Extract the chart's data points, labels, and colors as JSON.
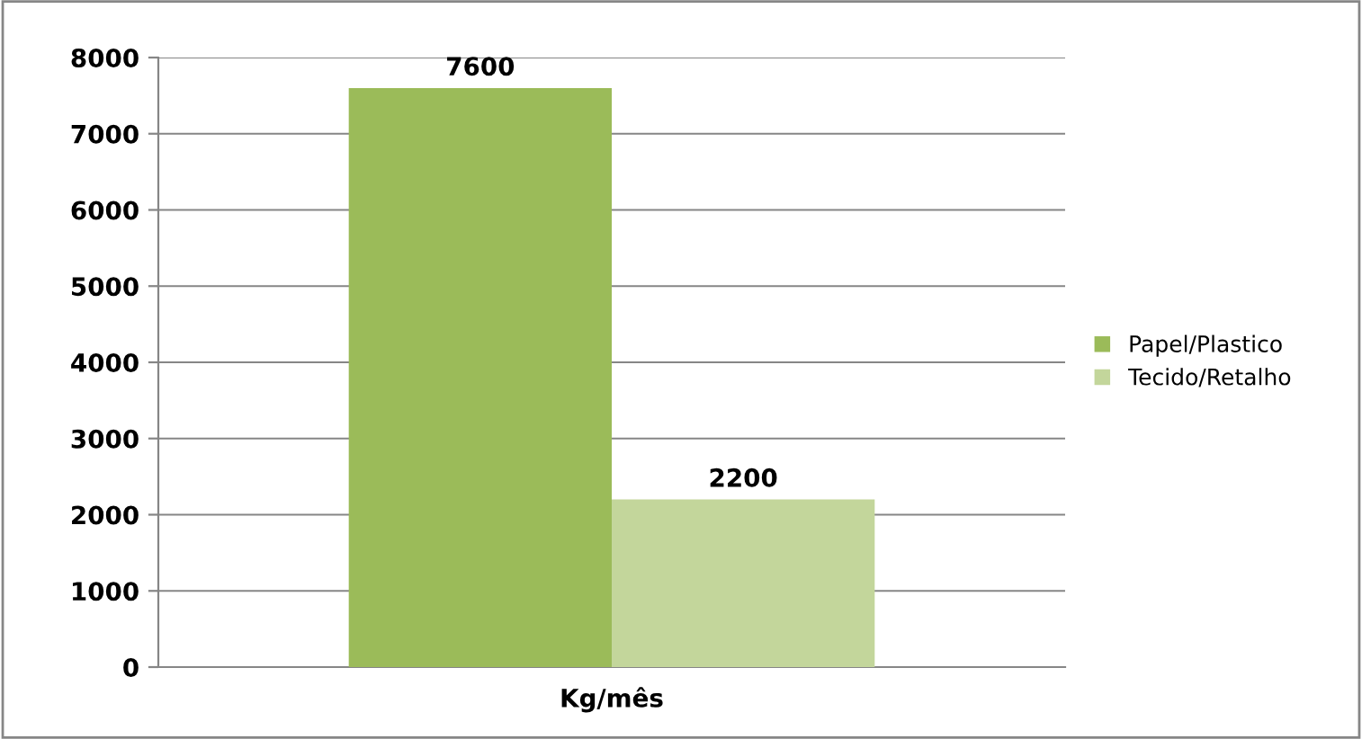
{
  "chart_data": {
    "type": "bar",
    "categories": [
      "Kg/mês"
    ],
    "series": [
      {
        "name": "Papel/Plastico",
        "color": "#9bbb59",
        "values": [
          7600
        ]
      },
      {
        "name": "Tecido/Retalho",
        "color": "#c3d69b",
        "values": [
          2200
        ]
      }
    ],
    "ylim": [
      0,
      8000
    ],
    "yticks": [
      0,
      1000,
      2000,
      3000,
      4000,
      5000,
      6000,
      7000,
      8000
    ],
    "grid": "y",
    "legend": "right",
    "data_labels": true
  }
}
